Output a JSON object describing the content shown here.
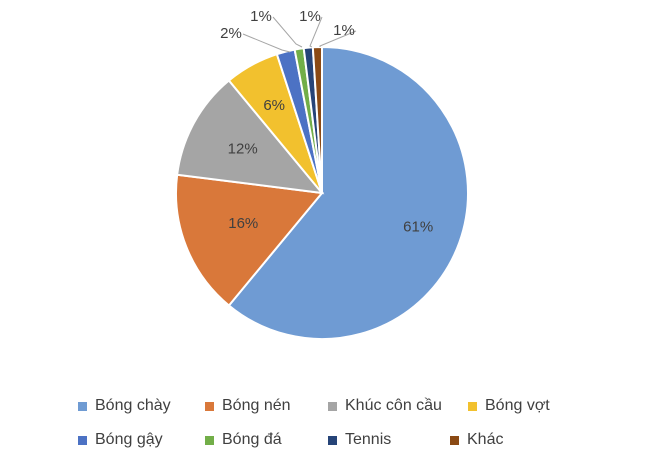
{
  "chart_data": {
    "type": "pie",
    "start_angle_deg": 0,
    "direction": "clockwise",
    "slices": [
      {
        "label": "Bóng chày",
        "value": 61,
        "value_label": "61%",
        "color": "#6F9BD3"
      },
      {
        "label": "Bóng nén",
        "value": 16,
        "value_label": "16%",
        "color": "#D9783A"
      },
      {
        "label": "Khúc côn cầu",
        "value": 12,
        "value_label": "12%",
        "color": "#A5A5A5"
      },
      {
        "label": "Bóng vợt",
        "value": 6,
        "value_label": "6%",
        "color": "#F2C12E"
      },
      {
        "label": "Bóng gậy",
        "value": 2,
        "value_label": "2%",
        "color": "#4C72C4"
      },
      {
        "label": "Bóng đá",
        "value": 1,
        "value_label": "1%",
        "color": "#72AE48"
      },
      {
        "label": "Tennis",
        "value": 1,
        "value_label": "1%",
        "color": "#264478"
      },
      {
        "label": "Khác",
        "value": 1,
        "value_label": "1%",
        "color": "#8B4A14"
      }
    ],
    "legend_position": "bottom",
    "label_color": "#404040"
  }
}
